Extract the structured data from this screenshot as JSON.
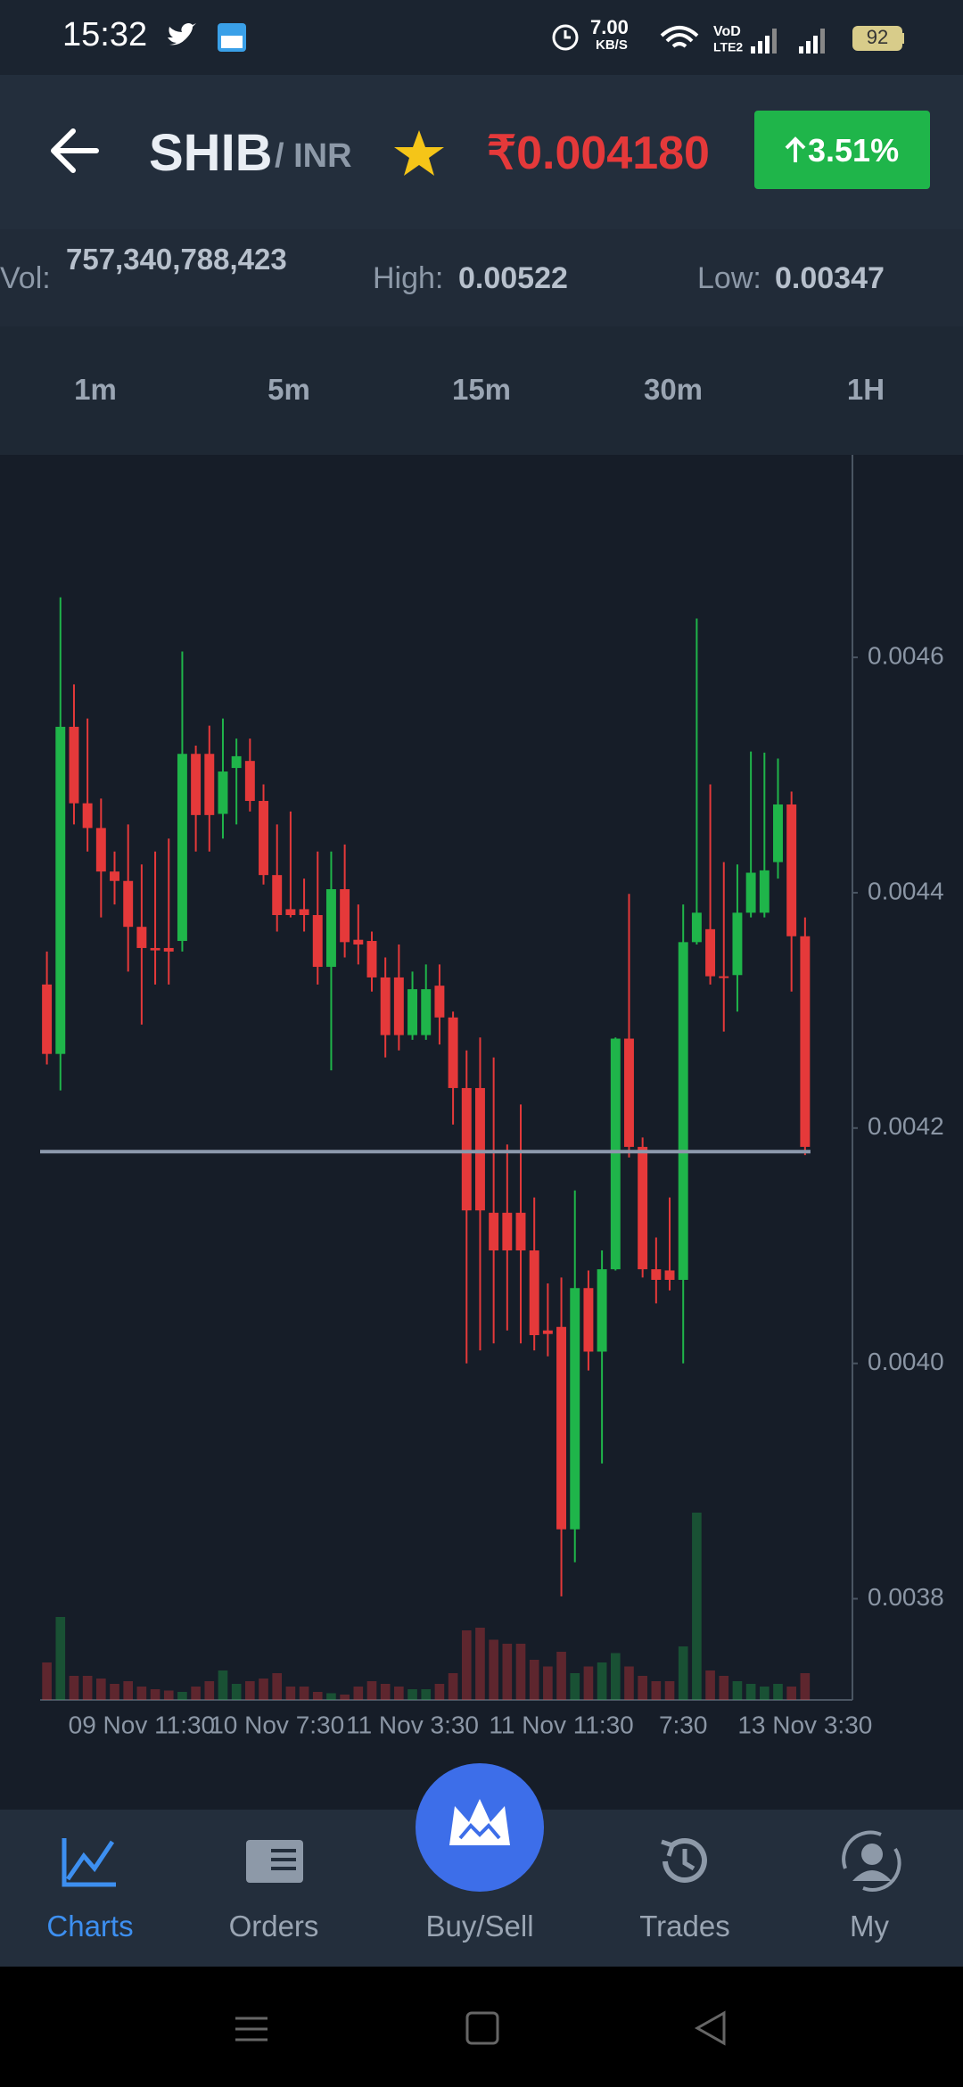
{
  "status_bar": {
    "time": "15:32",
    "net_speed": "7.00",
    "net_unit": "KB/S",
    "battery": "92"
  },
  "header": {
    "symbol": "SHIB",
    "quote": "/ INR",
    "price": "₹0.004180",
    "change": "3.51%"
  },
  "stats": {
    "vol_label": "Vol:",
    "vol": "757,340,788,423",
    "high_label": "High:",
    "high": "0.00522",
    "low_label": "Low:",
    "low": "0.00347"
  },
  "intervals": [
    "1m",
    "5m",
    "15m",
    "30m",
    "1H"
  ],
  "chart_data": {
    "type": "candlestick",
    "categories": [
      null,
      null,
      null,
      null,
      null,
      null,
      null,
      "09 Nov 11:30",
      null,
      null,
      null,
      null,
      null,
      null,
      null,
      null,
      null,
      "10 Nov 7:30",
      null,
      null,
      null,
      null,
      null,
      null,
      null,
      null,
      null,
      "11 Nov 3:30",
      null,
      null,
      null,
      null,
      null,
      null,
      null,
      null,
      null,
      null,
      "11 Nov 11:30",
      null,
      null,
      null,
      null,
      null,
      null,
      null,
      null,
      "7:30",
      null,
      null,
      null,
      null,
      null,
      null,
      null,
      null,
      "13 Nov 3:30"
    ],
    "open": [
      0.004322,
      0.004263,
      0.004541,
      0.004476,
      0.004455,
      0.004418,
      0.00441,
      0.004371,
      0.004353,
      0.004353,
      0.004359,
      0.004518,
      0.004518,
      0.004467,
      0.004506,
      0.004512,
      0.004478,
      0.004415,
      0.004386,
      0.004386,
      0.004381,
      0.004337,
      0.004403,
      0.00436,
      0.004359,
      0.004328,
      0.004328,
      0.004279,
      0.004279,
      0.004321,
      0.004294,
      0.004234,
      0.004234,
      0.004128,
      0.004128,
      0.004128,
      0.004096,
      0.004028,
      0.004031,
      0.003859,
      0.004064,
      0.00401,
      0.00408,
      0.004276,
      0.004184,
      0.00408,
      0.004079,
      0.004071,
      0.004358,
      0.004369,
      0.004329,
      0.00433,
      0.004383,
      0.004383,
      0.004426,
      0.004475,
      0.004363
    ],
    "high": [
      0.00435,
      0.004651,
      0.004577,
      0.004548,
      0.00448,
      0.004435,
      0.004458,
      0.004424,
      0.004435,
      0.004446,
      0.004605,
      0.004525,
      0.004542,
      0.004548,
      0.004531,
      0.004531,
      0.004492,
      0.004458,
      0.004469,
      0.004412,
      0.004435,
      0.004435,
      0.004441,
      0.00439,
      0.004367,
      0.004345,
      0.004356,
      0.004333,
      0.004339,
      0.004339,
      0.004299,
      0.004266,
      0.004277,
      0.00426,
      0.004186,
      0.00422,
      0.004141,
      0.004068,
      0.004073,
      0.004147,
      0.004079,
      0.004096,
      0.004277,
      0.004399,
      0.004192,
      0.004107,
      0.004141,
      0.00439,
      0.004633,
      0.004492,
      0.004426,
      0.004424,
      0.00452,
      0.004519,
      0.004514,
      0.004486,
      0.004379
    ],
    "low": [
      0.004254,
      0.004232,
      0.004458,
      0.004435,
      0.004379,
      0.00439,
      0.004333,
      0.004288,
      0.004322,
      0.004322,
      0.00435,
      0.004435,
      0.004435,
      0.004446,
      0.004458,
      0.004469,
      0.004407,
      0.004367,
      0.004379,
      0.004367,
      0.004322,
      0.004249,
      0.004345,
      0.004339,
      0.004316,
      0.00426,
      0.004266,
      0.004275,
      0.004275,
      0.004271,
      0.004203,
      0.004,
      0.004011,
      0.004017,
      0.004028,
      0.004017,
      0.004011,
      0.004006,
      0.003802,
      0.003831,
      0.003994,
      0.003915,
      0.004079,
      0.004175,
      0.004073,
      0.004051,
      0.004062,
      0.004,
      0.004356,
      0.004322,
      0.004282,
      0.004299,
      0.004379,
      0.004379,
      0.004412,
      0.004316,
      0.004177
    ],
    "close": [
      0.004263,
      0.004541,
      0.004476,
      0.004455,
      0.004418,
      0.00441,
      0.004371,
      0.004353,
      0.004351,
      0.00435,
      0.004518,
      0.004466,
      0.004466,
      0.004503,
      0.004516,
      0.004478,
      0.004415,
      0.004381,
      0.004381,
      0.004381,
      0.004337,
      0.004403,
      0.004358,
      0.004356,
      0.004328,
      0.004279,
      0.004279,
      0.004318,
      0.004318,
      0.004294,
      0.004234,
      0.00413,
      0.00413,
      0.004096,
      0.004096,
      0.004096,
      0.004024,
      0.004025,
      0.003859,
      0.004064,
      0.00401,
      0.00408,
      0.004276,
      0.004184,
      0.00408,
      0.004071,
      0.004071,
      0.004358,
      0.004383,
      0.004329,
      0.004328,
      0.004383,
      0.004417,
      0.004419,
      0.004475,
      0.004363,
      0.004184
    ],
    "volume": [
      28,
      62,
      18,
      18,
      16,
      12,
      14,
      10,
      8,
      7,
      6,
      10,
      14,
      22,
      12,
      14,
      16,
      20,
      10,
      10,
      6,
      5,
      4,
      10,
      14,
      12,
      10,
      8,
      8,
      12,
      20,
      52,
      54,
      45,
      42,
      42,
      30,
      25,
      36,
      20,
      25,
      28,
      35,
      25,
      18,
      14,
      14,
      40,
      140,
      22,
      18,
      14,
      12,
      10,
      12,
      10,
      20
    ],
    "up_color": "#1fb54a",
    "down_color": "#e5393a",
    "price_line": 0.00418,
    "ylim": [
      0.003714,
      0.004738
    ],
    "yticks": [
      {
        "value": 0.0038,
        "label": "0.0038"
      },
      {
        "value": 0.004,
        "label": "0.0040"
      },
      {
        "value": 0.0042,
        "label": "0.0042"
      },
      {
        "value": 0.0044,
        "label": "0.0044"
      },
      {
        "value": 0.0046,
        "label": "0.0046"
      }
    ]
  },
  "nav": [
    "Charts",
    "Orders",
    "Buy/Sell",
    "Trades",
    "My"
  ]
}
